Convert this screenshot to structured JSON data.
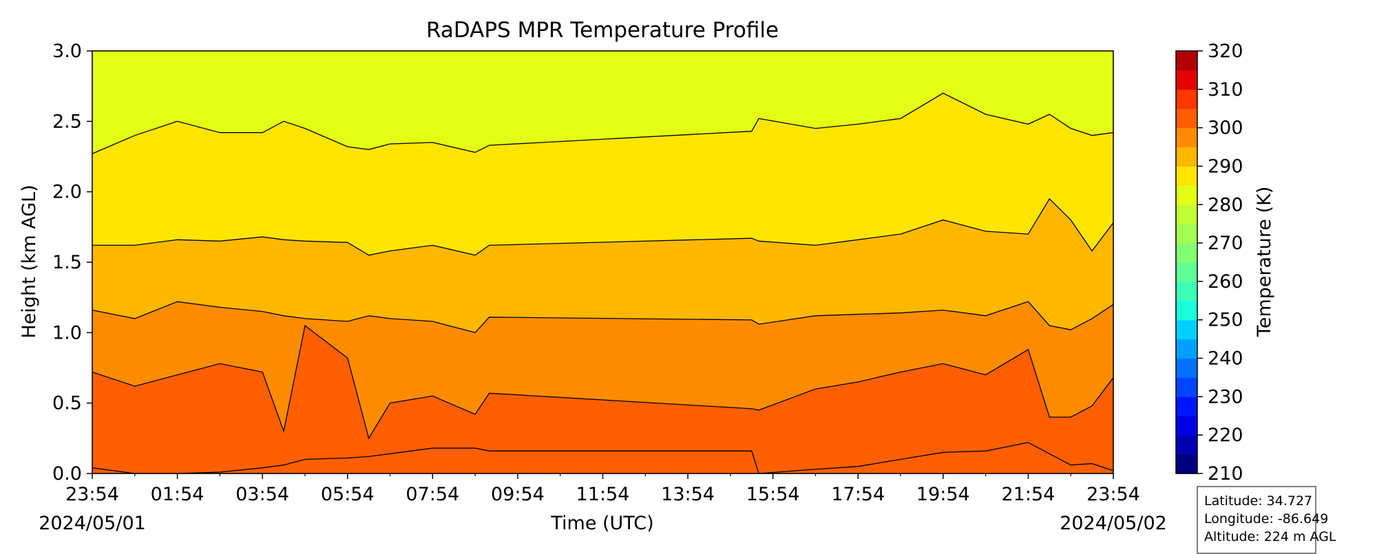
{
  "chart_data": {
    "type": "heatmap",
    "title": "RaDAPS MPR Temperature Profile",
    "xlabel": "Time (UTC)",
    "ylabel": "Height (km AGL)",
    "ylim": [
      0.0,
      3.0
    ],
    "x_range": [
      "2024/05/01 23:54",
      "2024/05/02 23:54"
    ],
    "x_ticks": [
      "23:54",
      "01:54",
      "03:54",
      "05:54",
      "07:54",
      "09:54",
      "11:54",
      "13:54",
      "15:54",
      "17:54",
      "19:54",
      "21:54",
      "23:54"
    ],
    "x_dates": [
      {
        "text": "2024/05/01",
        "tick_index": 0
      },
      {
        "text": "2024/05/02",
        "tick_index": 12
      }
    ],
    "y_ticks": [
      "0.0",
      "0.5",
      "1.0",
      "1.5",
      "2.0",
      "2.5",
      "3.0"
    ],
    "grid": false,
    "colorbar": {
      "label": "Temperature (K)",
      "range": [
        210,
        320
      ],
      "step": 5,
      "ticks": [
        "210",
        "220",
        "230",
        "240",
        "250",
        "260",
        "270",
        "280",
        "290",
        "300",
        "310",
        "320"
      ],
      "colors": [
        "#00007f",
        "#0000b2",
        "#0000e5",
        "#0015ff",
        "#0044ff",
        "#0070ff",
        "#00a0ff",
        "#00d0ff",
        "#1cfedb",
        "#3effb8",
        "#5fff97",
        "#83ff73",
        "#a3ff53",
        "#c1ff36",
        "#e2ff15",
        "#ffe500",
        "#ffb700",
        "#ff8c00",
        "#ff5f00",
        "#ff3800",
        "#e20000",
        "#b20000"
      ]
    },
    "contour_levels_K": [
      280,
      285,
      290,
      295,
      300,
      305
    ],
    "contour_heights_km": [
      {
        "time": "23:54",
        "h": [
          0.04,
          0.72,
          1.16,
          1.62,
          2.27
        ]
      },
      {
        "time": "00:54",
        "h": [
          0.0,
          0.62,
          1.1,
          1.62,
          2.4
        ]
      },
      {
        "time": "01:54",
        "h": [
          0.0,
          0.7,
          1.22,
          1.66,
          2.5
        ]
      },
      {
        "time": "02:54",
        "h": [
          0.01,
          0.78,
          1.18,
          1.65,
          2.42
        ]
      },
      {
        "time": "03:54",
        "h": [
          0.04,
          0.72,
          1.15,
          1.68,
          2.42
        ]
      },
      {
        "time": "04:24",
        "h": [
          0.06,
          0.3,
          1.12,
          1.66,
          2.5
        ]
      },
      {
        "time": "04:54",
        "h": [
          0.1,
          1.05,
          1.1,
          1.65,
          2.45
        ]
      },
      {
        "time": "05:54",
        "h": [
          0.11,
          0.82,
          1.08,
          1.64,
          2.32
        ]
      },
      {
        "time": "06:24",
        "h": [
          0.12,
          0.25,
          1.12,
          1.55,
          2.3
        ]
      },
      {
        "time": "06:54",
        "h": [
          0.14,
          0.5,
          1.1,
          1.58,
          2.34
        ]
      },
      {
        "time": "07:54",
        "h": [
          0.18,
          0.55,
          1.08,
          1.62,
          2.35
        ]
      },
      {
        "time": "08:54",
        "h": [
          0.18,
          0.42,
          1.0,
          1.55,
          2.28
        ]
      },
      {
        "time": "09:14",
        "h": [
          0.16,
          0.57,
          1.11,
          1.62,
          2.33
        ]
      },
      {
        "time": "15:24",
        "h": [
          0.16,
          0.46,
          1.09,
          1.67,
          2.43
        ]
      },
      {
        "time": "15:34",
        "h": [
          0.0,
          0.45,
          1.06,
          1.65,
          2.52
        ]
      },
      {
        "time": "16:54",
        "h": [
          0.03,
          0.6,
          1.12,
          1.62,
          2.45
        ]
      },
      {
        "time": "17:54",
        "h": [
          0.05,
          0.65,
          1.13,
          1.66,
          2.48
        ]
      },
      {
        "time": "18:54",
        "h": [
          0.1,
          0.72,
          1.14,
          1.7,
          2.52
        ]
      },
      {
        "time": "19:54",
        "h": [
          0.15,
          0.78,
          1.16,
          1.8,
          2.7
        ]
      },
      {
        "time": "20:54",
        "h": [
          0.16,
          0.7,
          1.12,
          1.72,
          2.55
        ]
      },
      {
        "time": "21:54",
        "h": [
          0.22,
          0.88,
          1.22,
          1.7,
          2.48
        ]
      },
      {
        "time": "22:24",
        "h": [
          0.14,
          0.4,
          1.05,
          1.95,
          2.55
        ]
      },
      {
        "time": "22:54",
        "h": [
          0.06,
          0.4,
          1.02,
          1.8,
          2.45
        ]
      },
      {
        "time": "23:24",
        "h": [
          0.07,
          0.48,
          1.1,
          1.58,
          2.4
        ]
      },
      {
        "time": "23:54",
        "h": [
          0.02,
          0.68,
          1.2,
          1.78,
          2.42
        ]
      }
    ]
  },
  "info_box": {
    "latitude": "Latitude: 34.727",
    "longitude": "Longitude: -86.649",
    "altitude": "Altitude: 224 m AGL"
  }
}
